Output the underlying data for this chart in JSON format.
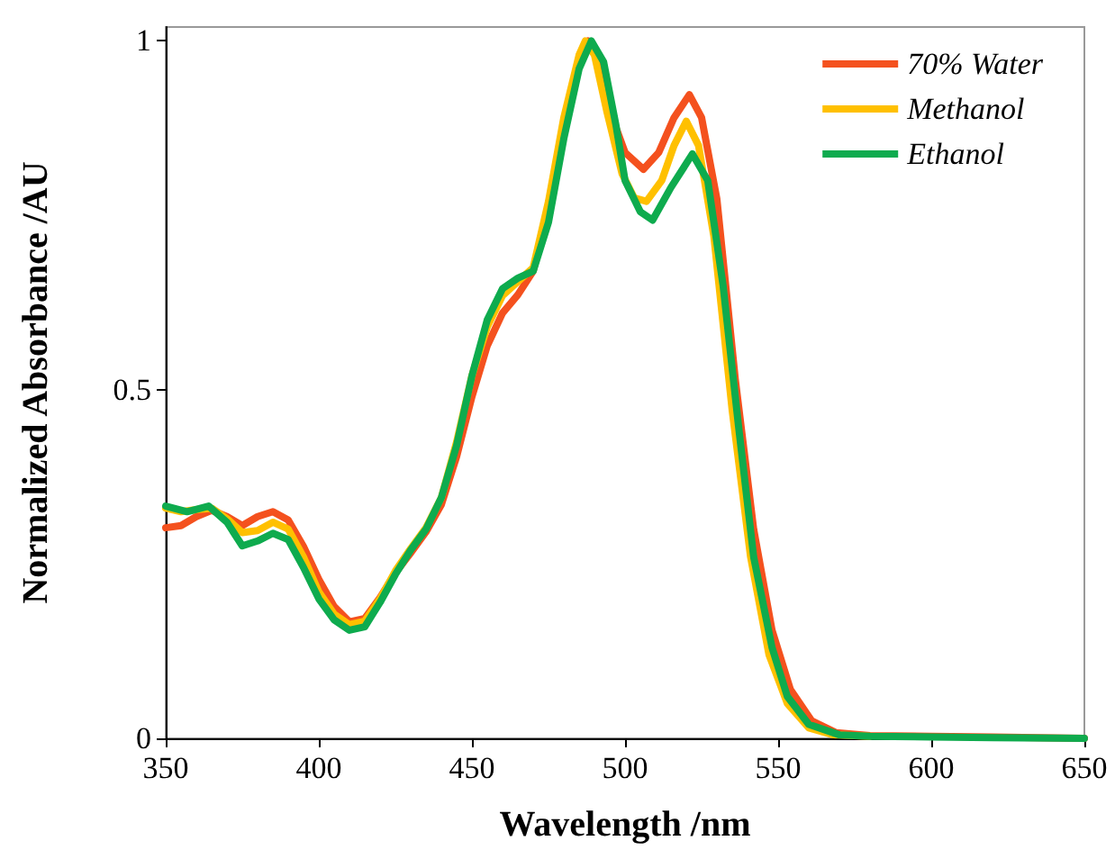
{
  "chart_data": {
    "type": "line",
    "xlabel": "Wavelength /nm",
    "ylabel": "Normalized Absorbance /AU",
    "xlim": [
      350,
      650
    ],
    "xticks": [
      350,
      400,
      450,
      500,
      550,
      600,
      650
    ],
    "ylim": [
      0,
      1.02
    ],
    "yticks": [
      0,
      0.5,
      1
    ],
    "grid": false,
    "legend": "top right",
    "marker": "none",
    "line_style": "solid",
    "series": [
      {
        "name": "70% Water",
        "color": "#f4511e",
        "x": [
          350,
          355,
          360,
          365,
          370,
          375,
          380,
          385,
          390,
          395,
          400,
          405,
          410,
          415,
          420,
          425,
          430,
          435,
          440,
          445,
          450,
          455,
          460,
          465,
          470,
          475,
          480,
          485,
          488,
          491,
          495,
          500,
          506,
          511,
          516,
          521,
          525,
          530,
          536,
          542,
          548,
          554,
          561,
          569,
          580,
          600,
          620,
          650
        ],
        "values": [
          0.302,
          0.305,
          0.318,
          0.327,
          0.318,
          0.305,
          0.318,
          0.325,
          0.313,
          0.275,
          0.228,
          0.189,
          0.167,
          0.172,
          0.202,
          0.237,
          0.266,
          0.296,
          0.335,
          0.404,
          0.49,
          0.563,
          0.61,
          0.636,
          0.67,
          0.756,
          0.876,
          0.975,
          1.0,
          0.98,
          0.9,
          0.84,
          0.816,
          0.84,
          0.89,
          0.923,
          0.89,
          0.773,
          0.515,
          0.3,
          0.155,
          0.07,
          0.025,
          0.008,
          0.004,
          0.003,
          0.002,
          0
        ]
      },
      {
        "name": "Methanol",
        "color": "#ffc000",
        "x": [
          350,
          355,
          360,
          365,
          370,
          375,
          380,
          385,
          390,
          395,
          400,
          405,
          410,
          415,
          420,
          425,
          430,
          435,
          440,
          445,
          450,
          455,
          460,
          465,
          470,
          475,
          480,
          485,
          487,
          490,
          494,
          499,
          503,
          507,
          512,
          516,
          520,
          524,
          529,
          535,
          541,
          547,
          553,
          560,
          568,
          580
        ],
        "values": [
          0.33,
          0.325,
          0.328,
          0.33,
          0.315,
          0.295,
          0.298,
          0.31,
          0.3,
          0.26,
          0.21,
          0.178,
          0.163,
          0.168,
          0.2,
          0.24,
          0.272,
          0.302,
          0.345,
          0.425,
          0.52,
          0.59,
          0.635,
          0.655,
          0.675,
          0.77,
          0.89,
          0.98,
          1.0,
          0.98,
          0.9,
          0.81,
          0.775,
          0.77,
          0.8,
          0.85,
          0.885,
          0.85,
          0.72,
          0.47,
          0.26,
          0.12,
          0.05,
          0.015,
          0.005,
          0.003
        ]
      },
      {
        "name": "Ethanol",
        "color": "#0eab4e",
        "x": [
          350,
          357,
          364,
          370,
          375,
          380,
          385,
          390,
          395,
          400,
          405,
          410,
          415,
          420,
          425,
          430,
          435,
          440,
          445,
          450,
          455,
          460,
          465,
          470,
          475,
          480,
          485,
          489,
          493,
          497,
          500,
          505,
          509,
          515,
          522,
          527,
          532,
          537,
          542,
          548,
          553,
          560,
          570,
          580,
          600,
          620,
          650
        ],
        "values": [
          0.333,
          0.325,
          0.333,
          0.31,
          0.276,
          0.283,
          0.294,
          0.285,
          0.245,
          0.2,
          0.17,
          0.155,
          0.16,
          0.195,
          0.235,
          0.27,
          0.3,
          0.345,
          0.42,
          0.52,
          0.6,
          0.645,
          0.66,
          0.67,
          0.74,
          0.86,
          0.96,
          1.0,
          0.97,
          0.88,
          0.8,
          0.755,
          0.743,
          0.79,
          0.838,
          0.8,
          0.65,
          0.45,
          0.26,
          0.13,
          0.06,
          0.02,
          0.005,
          0.003,
          0.002,
          0.001,
          0
        ]
      }
    ]
  }
}
